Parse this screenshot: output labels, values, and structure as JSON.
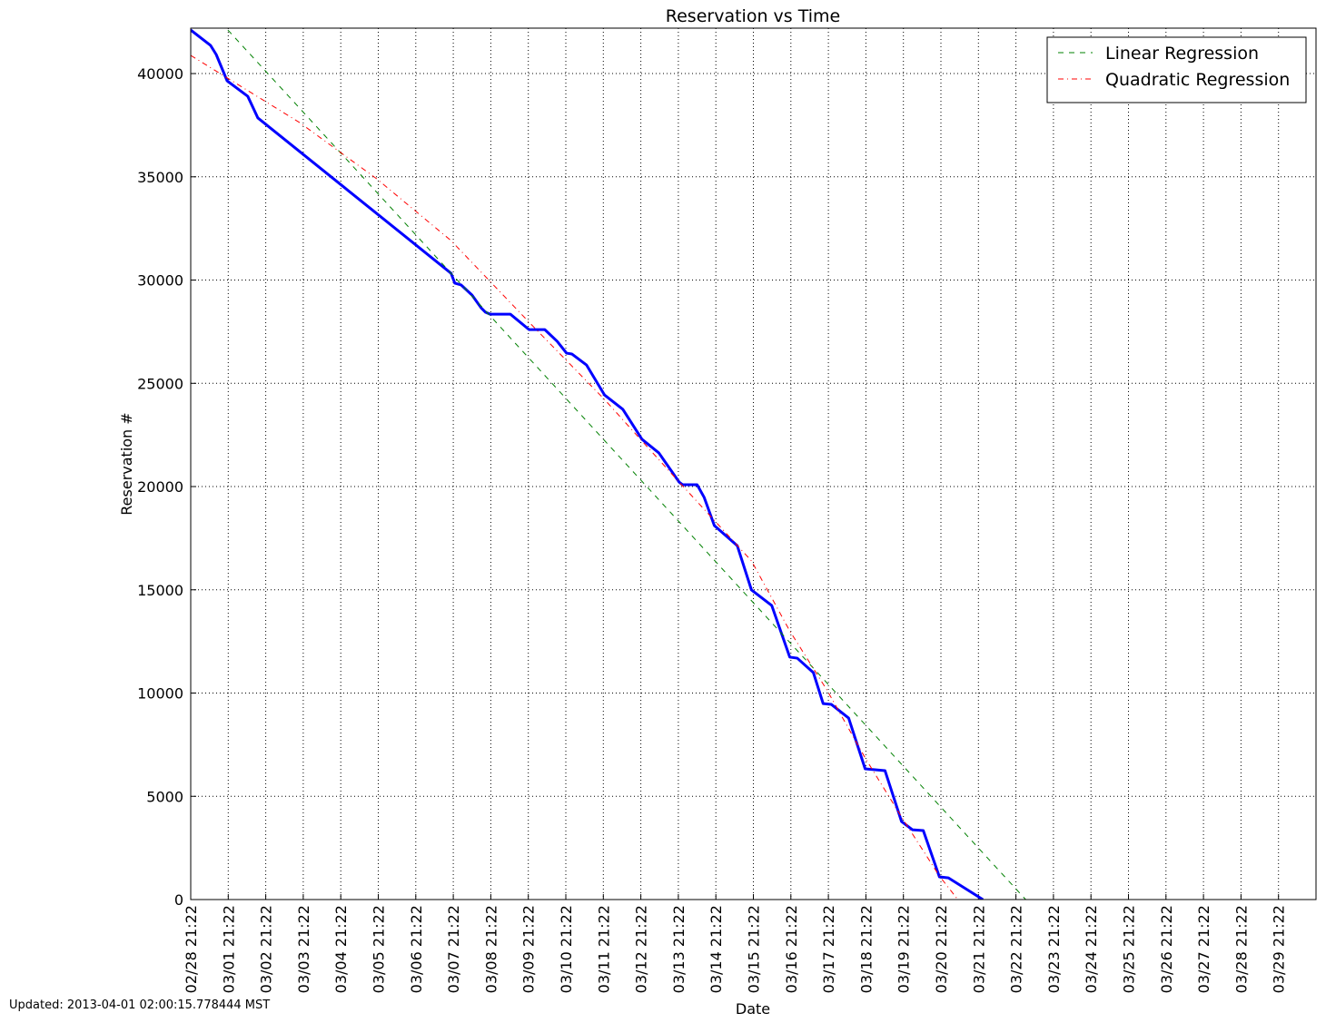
{
  "chart_data": {
    "type": "line",
    "title": "Reservation vs Time",
    "x_label": "Date",
    "y_label": "Reservation #",
    "footnote": "Updated: 2013-04-01 02:00:15.778444 MST",
    "xlim": [
      0,
      30
    ],
    "ylim": [
      0,
      42200
    ],
    "grid": true,
    "legend": "upper right",
    "xticks": [
      {
        "value": 0,
        "label": "02/28 21:22"
      },
      {
        "value": 1,
        "label": "03/01 21:22"
      },
      {
        "value": 2,
        "label": "03/02 21:22"
      },
      {
        "value": 3,
        "label": "03/03 21:22"
      },
      {
        "value": 4,
        "label": "03/04 21:22"
      },
      {
        "value": 5,
        "label": "03/05 21:22"
      },
      {
        "value": 6,
        "label": "03/06 21:22"
      },
      {
        "value": 7,
        "label": "03/07 21:22"
      },
      {
        "value": 8,
        "label": "03/08 21:22"
      },
      {
        "value": 9,
        "label": "03/09 21:22"
      },
      {
        "value": 10,
        "label": "03/10 21:22"
      },
      {
        "value": 11,
        "label": "03/11 21:22"
      },
      {
        "value": 12,
        "label": "03/12 21:22"
      },
      {
        "value": 13,
        "label": "03/13 21:22"
      },
      {
        "value": 14,
        "label": "03/14 21:22"
      },
      {
        "value": 15,
        "label": "03/15 21:22"
      },
      {
        "value": 16,
        "label": "03/16 21:22"
      },
      {
        "value": 17,
        "label": "03/17 21:22"
      },
      {
        "value": 18,
        "label": "03/18 21:22"
      },
      {
        "value": 19,
        "label": "03/19 21:22"
      },
      {
        "value": 20,
        "label": "03/20 21:22"
      },
      {
        "value": 21,
        "label": "03/21 21:22"
      },
      {
        "value": 22,
        "label": "03/22 21:22"
      },
      {
        "value": 23,
        "label": "03/23 21:22"
      },
      {
        "value": 24,
        "label": "03/24 21:22"
      },
      {
        "value": 25,
        "label": "03/25 21:22"
      },
      {
        "value": 26,
        "label": "03/26 21:22"
      },
      {
        "value": 27,
        "label": "03/27 21:22"
      },
      {
        "value": 28,
        "label": "03/28 21:22"
      },
      {
        "value": 29,
        "label": "03/29 21:22"
      }
    ],
    "yticks": [
      0,
      5000,
      10000,
      15000,
      20000,
      25000,
      30000,
      35000,
      40000
    ],
    "series": [
      {
        "color": "#0000ff",
        "width": 3,
        "dash": "solid",
        "x": [
          0,
          0.53,
          0.68,
          0.97,
          1.52,
          1.79,
          6.94,
          7.04,
          7.21,
          7.5,
          7.74,
          7.86,
          7.98,
          8.52,
          9.02,
          9.44,
          9.77,
          10.02,
          10.16,
          10.55,
          11.03,
          11.52,
          12.03,
          12.48,
          13.02,
          13.11,
          13.5,
          13.69,
          13.96,
          14.57,
          14.95,
          15.49,
          15.97,
          16.17,
          16.6,
          16.86,
          17.08,
          17.54,
          17.98,
          18.51,
          18.95,
          19.24,
          19.53,
          19.96,
          20.2,
          21.12
        ],
        "values": [
          42110,
          41360,
          40920,
          39650,
          38900,
          37850,
          30330,
          29850,
          29760,
          29270,
          28660,
          28440,
          28350,
          28350,
          27600,
          27600,
          27030,
          26460,
          26420,
          25890,
          24440,
          23740,
          22290,
          21630,
          20220,
          20090,
          20090,
          19470,
          18110,
          17140,
          14990,
          14240,
          11740,
          11690,
          10990,
          9490,
          9450,
          8790,
          6330,
          6240,
          3780,
          3380,
          3340,
          1100,
          1050,
          0
        ]
      },
      {
        "name": "Linear Regression",
        "color": "#008000",
        "width": 1,
        "dash": "dashed",
        "x": [
          0.99,
          22.26
        ],
        "values": [
          42110,
          0
        ]
      },
      {
        "name": "Quadratic Regression",
        "color": "#ff0000",
        "width": 1,
        "dash": "dashdot",
        "x": [
          0,
          2.9,
          4.96,
          6.94,
          9.02,
          11.03,
          13.02,
          14.95,
          15.97,
          16.96,
          17.98,
          18.95,
          19.96,
          20.45
        ],
        "values": [
          40880,
          37630,
          34900,
          31910,
          27960,
          24220,
          20220,
          16400,
          13010,
          10150,
          6860,
          4000,
          1140,
          0
        ]
      }
    ]
  }
}
